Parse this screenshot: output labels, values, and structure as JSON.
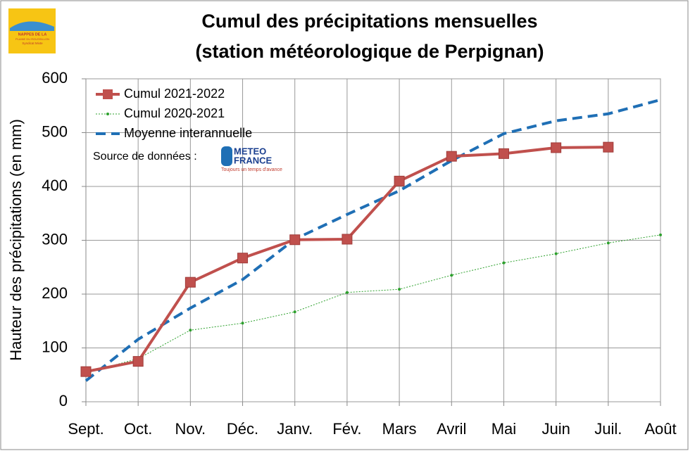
{
  "chart_data": {
    "type": "line",
    "title": [
      "Cumul des précipitations mensuelles",
      "(station météorologique de Perpignan)"
    ],
    "y_label": "Hauteur des précipitations (en mm)",
    "categories": [
      "Sept.",
      "Oct.",
      "Nov.",
      "Déc.",
      "Janv.",
      "Fév.",
      "Mars",
      "Avril",
      "Mai",
      "Juin",
      "Juil.",
      "Août"
    ],
    "series": [
      {
        "name": "Cumul 2021-2022",
        "color": "#c0504d",
        "line_style": "solid",
        "width": 4,
        "marker": "square",
        "values": [
          56,
          75,
          222,
          267,
          301,
          302,
          410,
          456,
          461,
          472,
          473,
          null
        ]
      },
      {
        "name": "Cumul 2020-2021",
        "color": "#2ca02c",
        "line_style": "dotted",
        "width": 1,
        "marker": "dot",
        "values": [
          54,
          80,
          133,
          146,
          167,
          203,
          209,
          235,
          258,
          275,
          295,
          310
        ]
      },
      {
        "name": "Moyenne interannuelle",
        "color": "#1f6fb5",
        "line_style": "dashed",
        "width": 4,
        "marker": "none",
        "values": [
          39,
          116,
          174,
          227,
          302,
          348,
          392,
          448,
          498,
          522,
          535,
          561
        ]
      }
    ],
    "ylim": [
      0,
      600
    ],
    "yticks": [
      0,
      100,
      200,
      300,
      400,
      500,
      600
    ],
    "grid": true,
    "legend": "upper left",
    "source_label": "Source de données :",
    "source_logo": {
      "name": "METEO",
      "name2": "FRANCE",
      "tagline": "Toujours un temps d'avance"
    },
    "org_logo": [
      "NAPPES DE LA",
      "PLAINE DU ROUSSILLON",
      "Syndicat Mixte"
    ]
  }
}
